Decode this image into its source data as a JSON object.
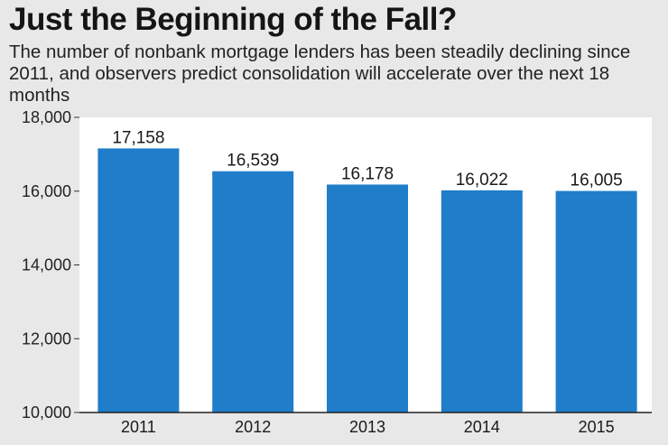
{
  "chart_data": {
    "type": "bar",
    "title": "Just the Beginning of the Fall?",
    "subtitle": "The number of nonbank mortgage lenders has been steadily declining since 2011, and observers predict consolidation will accelerate over the next 18 months",
    "categories": [
      "2011",
      "2012",
      "2013",
      "2014",
      "2015"
    ],
    "values": [
      17158,
      16539,
      16178,
      16022,
      16005
    ],
    "value_labels": [
      "17,158",
      "16,539",
      "16,178",
      "16,022",
      "16,005"
    ],
    "xlabel": "",
    "ylabel": "",
    "ylim": [
      10000,
      18000
    ],
    "yticks": [
      10000,
      12000,
      14000,
      16000,
      18000
    ],
    "ytick_labels": [
      "10,000",
      "12,000",
      "14,000",
      "16,000",
      "18,000"
    ],
    "grid": false,
    "legend": "none",
    "bar_color": "#1f7dc9",
    "plot_background": "#ffffff",
    "page_background": "#e8e8e8"
  }
}
